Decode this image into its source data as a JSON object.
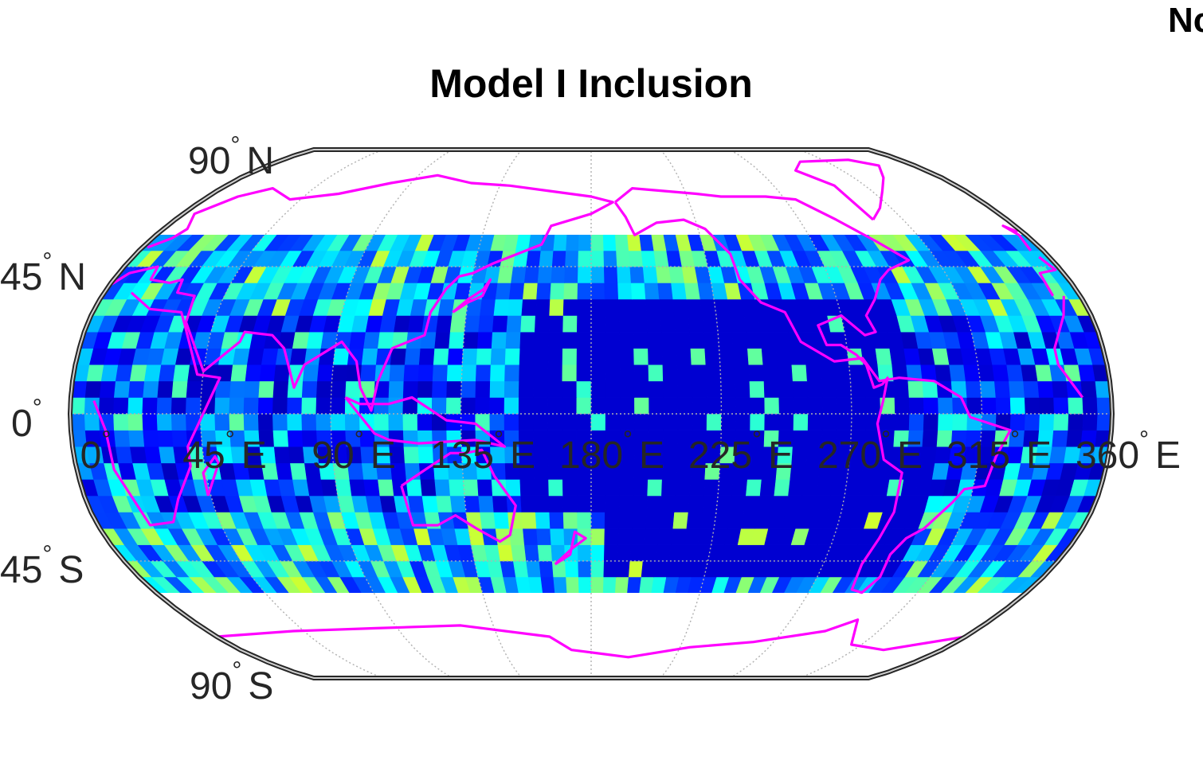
{
  "figure": {
    "title": "Model I Inclusion",
    "corner_text": "Nc"
  },
  "map": {
    "projection": "robinson",
    "central_meridian": 180,
    "grid_cell_degrees": 5,
    "data_lat_range": [
      -55,
      55
    ],
    "frame_color": "#262626",
    "graticule_color": "#b0b0b0",
    "coastline_color": "#ff00ff",
    "colormap": "jet",
    "lat_labels": [
      {
        "text": "90",
        "hem": "N"
      },
      {
        "text": "45",
        "hem": "N"
      },
      {
        "text": "0",
        "hem": ""
      },
      {
        "text": "45",
        "hem": "S"
      },
      {
        "text": "90",
        "hem": "S"
      }
    ],
    "lon_labels": [
      {
        "text": "0",
        "hem": ""
      },
      {
        "text": "45",
        "hem": "E"
      },
      {
        "text": "90",
        "hem": "E"
      },
      {
        "text": "135",
        "hem": "E"
      },
      {
        "text": "180",
        "hem": "E"
      },
      {
        "text": "225",
        "hem": "E"
      },
      {
        "text": "270",
        "hem": "E"
      },
      {
        "text": "315",
        "hem": "E"
      },
      {
        "text": "360",
        "hem": "E"
      }
    ]
  }
}
